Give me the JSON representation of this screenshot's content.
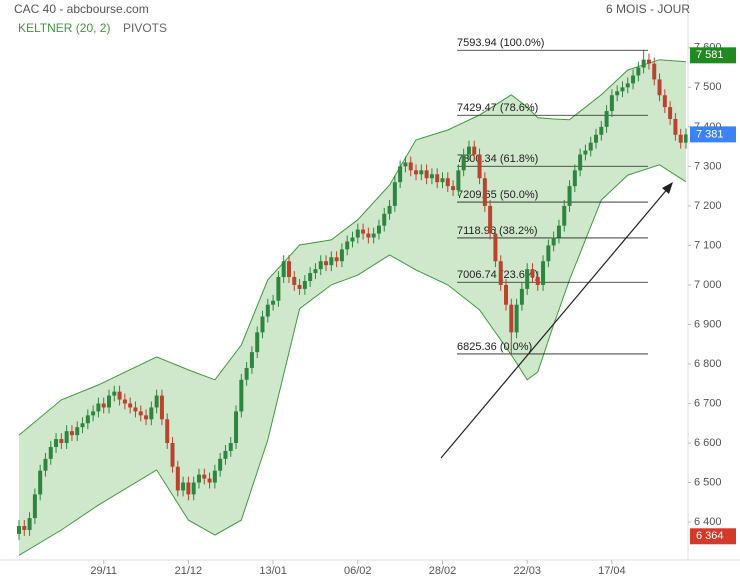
{
  "chart_data": {
    "type": "candlestick",
    "title": "CAC 40 - abcbourse.com",
    "period": "6 MOIS - JOUR",
    "inactive_indicator": "PIVOTS",
    "categories": [
      null,
      null,
      null,
      null,
      null,
      null,
      null,
      null,
      null,
      null,
      null,
      null,
      null,
      null,
      null,
      null,
      "29/11",
      null,
      null,
      null,
      null,
      null,
      null,
      null,
      null,
      null,
      null,
      null,
      null,
      null,
      null,
      null,
      "21/12",
      null,
      null,
      null,
      null,
      null,
      null,
      null,
      null,
      null,
      null,
      null,
      null,
      null,
      null,
      null,
      "13/01",
      null,
      null,
      null,
      null,
      null,
      null,
      null,
      null,
      null,
      null,
      null,
      null,
      null,
      null,
      null,
      "06/02",
      null,
      null,
      null,
      null,
      null,
      null,
      null,
      null,
      null,
      null,
      null,
      null,
      null,
      null,
      null,
      "28/02",
      null,
      null,
      null,
      null,
      null,
      null,
      null,
      null,
      null,
      null,
      null,
      null,
      null,
      null,
      null,
      "22/03",
      null,
      null,
      null,
      null,
      null,
      null,
      null,
      null,
      null,
      null,
      null,
      null,
      null,
      null,
      null,
      "17/04",
      null,
      null,
      null,
      null,
      null,
      null,
      null,
      null,
      null,
      null,
      null,
      null,
      null,
      null
    ],
    "open": [
      6370,
      6390,
      6380,
      6410,
      6470,
      6530,
      6560,
      6590,
      6610,
      6600,
      6630,
      6620,
      6640,
      6650,
      6670,
      6680,
      6700,
      6690,
      6720,
      6730,
      6710,
      6700,
      6690,
      6680,
      6670,
      6660,
      6690,
      6720,
      6660,
      6600,
      6540,
      6480,
      6500,
      6470,
      6500,
      6520,
      6510,
      6500,
      6530,
      6560,
      6580,
      6600,
      6680,
      6760,
      6790,
      6830,
      6880,
      6920,
      6950,
      6960,
      7020,
      7060,
      7020,
      7000,
      6990,
      7010,
      7030,
      7040,
      7060,
      7050,
      7070,
      7060,
      7090,
      7110,
      7120,
      7140,
      7130,
      7120,
      7130,
      7150,
      7180,
      7200,
      7260,
      7300,
      7310,
      7290,
      7280,
      7290,
      7270,
      7280,
      7260,
      7270,
      7250,
      7240,
      7290,
      7330,
      7350,
      7330,
      7270,
      7200,
      7130,
      7060,
      7000,
      6950,
      6880,
      6950,
      6990,
      7040,
      7020,
      7000,
      7060,
      7100,
      7120,
      7150,
      7200,
      7250,
      7290,
      7330,
      7340,
      7360,
      7380,
      7400,
      7440,
      7480,
      7490,
      7500,
      7510,
      7530,
      7550,
      7570,
      7560,
      7520,
      7480,
      7450,
      7420,
      7380,
      7360
    ],
    "high": [
      6405,
      6405,
      6425,
      6485,
      6545,
      6575,
      6605,
      6625,
      6625,
      6645,
      6645,
      6655,
      6665,
      6685,
      6695,
      6715,
      6715,
      6735,
      6745,
      6745,
      6725,
      6715,
      6705,
      6695,
      6685,
      6705,
      6735,
      6735,
      6675,
      6615,
      6555,
      6515,
      6515,
      6515,
      6535,
      6535,
      6525,
      6545,
      6575,
      6595,
      6615,
      6695,
      6775,
      6805,
      6845,
      6895,
      6935,
      6965,
      6975,
      7035,
      7075,
      7075,
      7035,
      7015,
      7025,
      7045,
      7055,
      7075,
      7075,
      7085,
      7085,
      7105,
      7125,
      7135,
      7155,
      7155,
      7145,
      7145,
      7165,
      7195,
      7215,
      7275,
      7315,
      7325,
      7325,
      7305,
      7305,
      7305,
      7295,
      7295,
      7285,
      7285,
      7265,
      7305,
      7345,
      7365,
      7365,
      7345,
      7285,
      7215,
      7145,
      7075,
      7015,
      6965,
      6965,
      7005,
      7055,
      7055,
      7035,
      7075,
      7115,
      7135,
      7165,
      7215,
      7265,
      7305,
      7345,
      7355,
      7375,
      7395,
      7415,
      7455,
      7495,
      7505,
      7515,
      7525,
      7545,
      7565,
      7594,
      7585,
      7575,
      7535,
      7495,
      7465,
      7435,
      7395,
      7396
    ],
    "low": [
      6355,
      6365,
      6365,
      6395,
      6455,
      6515,
      6545,
      6575,
      6585,
      6585,
      6605,
      6605,
      6625,
      6635,
      6655,
      6665,
      6675,
      6675,
      6705,
      6695,
      6685,
      6675,
      6665,
      6655,
      6645,
      6645,
      6675,
      6645,
      6585,
      6525,
      6465,
      6465,
      6455,
      6455,
      6485,
      6495,
      6485,
      6485,
      6515,
      6545,
      6565,
      6585,
      6665,
      6745,
      6775,
      6815,
      6865,
      6905,
      6935,
      6945,
      7005,
      7005,
      6985,
      6975,
      6975,
      6995,
      7015,
      7025,
      7035,
      7035,
      7045,
      7045,
      7075,
      7095,
      7105,
      7115,
      7105,
      7105,
      7115,
      7135,
      7165,
      7185,
      7245,
      7285,
      7275,
      7265,
      7265,
      7255,
      7255,
      7245,
      7245,
      7235,
      7225,
      7225,
      7275,
      7315,
      7315,
      7255,
      7185,
      7115,
      7045,
      6985,
      6935,
      6825,
      6865,
      6935,
      6975,
      7005,
      6985,
      6985,
      7045,
      7085,
      7105,
      7135,
      7185,
      7235,
      7275,
      7315,
      7325,
      7345,
      7365,
      7385,
      7425,
      7465,
      7475,
      7485,
      7495,
      7515,
      7535,
      7545,
      7505,
      7465,
      7435,
      7405,
      7365,
      7345,
      7345
    ],
    "close": [
      6390,
      6380,
      6410,
      6470,
      6530,
      6560,
      6590,
      6610,
      6600,
      6630,
      6620,
      6640,
      6650,
      6670,
      6680,
      6700,
      6690,
      6720,
      6730,
      6710,
      6700,
      6690,
      6680,
      6670,
      6660,
      6690,
      6720,
      6660,
      6600,
      6540,
      6480,
      6500,
      6470,
      6500,
      6520,
      6510,
      6500,
      6530,
      6560,
      6580,
      6600,
      6680,
      6760,
      6790,
      6830,
      6880,
      6920,
      6950,
      6960,
      7020,
      7060,
      7020,
      7000,
      6990,
      7010,
      7030,
      7040,
      7060,
      7050,
      7070,
      7060,
      7090,
      7110,
      7120,
      7140,
      7130,
      7120,
      7130,
      7150,
      7180,
      7200,
      7260,
      7300,
      7310,
      7290,
      7280,
      7290,
      7270,
      7280,
      7260,
      7270,
      7250,
      7240,
      7290,
      7330,
      7350,
      7330,
      7270,
      7200,
      7130,
      7060,
      7000,
      6950,
      6880,
      6950,
      6990,
      7040,
      7020,
      7000,
      7060,
      7100,
      7120,
      7150,
      7200,
      7250,
      7290,
      7330,
      7340,
      7360,
      7380,
      7400,
      7440,
      7480,
      7490,
      7500,
      7510,
      7530,
      7550,
      7570,
      7560,
      7520,
      7480,
      7450,
      7420,
      7380,
      7360,
      7381
    ],
    "up_color": "#2e8540",
    "down_color": "#b8432f",
    "channel": {
      "name": "KELTNER (20, 2)",
      "color": "#3f9a3f",
      "fill": "#cfe8cb",
      "x": [
        0,
        8,
        15,
        26,
        32,
        37,
        42,
        47,
        53,
        59,
        64,
        70,
        75,
        81,
        87,
        93,
        96,
        98,
        101,
        104,
        110,
        115,
        121,
        126
      ],
      "upper": [
        6620,
        6709,
        6747,
        6818,
        6785,
        6760,
        6848,
        7013,
        7101,
        7114,
        7165,
        7253,
        7367,
        7392,
        7430,
        7481,
        7450,
        7423,
        7420,
        7418,
        7481,
        7544,
        7570,
        7565
      ],
      "lower": [
        6316,
        6380,
        6443,
        6532,
        6405,
        6367,
        6405,
        6608,
        6940,
        7000,
        7025,
        7076,
        7038,
        7000,
        6937,
        6823,
        6760,
        6780,
        6900,
        7013,
        7215,
        7278,
        7304,
        7261
      ]
    },
    "fibonacci": {
      "color": "#222222",
      "levels": [
        {
          "value": 7593.94,
          "label": "7593.94  (100.0%)"
        },
        {
          "value": 7429.47,
          "label": "7429.47  (78.6%)"
        },
        {
          "value": 7300.34,
          "label": "7300.34  (61.8%)"
        },
        {
          "value": 7209.65,
          "label": "7209.65  (50.0%)"
        },
        {
          "value": 7118.96,
          "label": "7118.96  (38.2%)"
        },
        {
          "value": 7006.74,
          "label": "7006.74  (23.6%)"
        },
        {
          "value": 6825.36,
          "label": "6825.36  (0.0%)"
        }
      ]
    },
    "price_labels": [
      {
        "value": 7581,
        "label": "7 581",
        "color": "#1f8a1f"
      },
      {
        "value": 7381,
        "label": "7 381",
        "color": "#3b82f6"
      },
      {
        "value": 6364,
        "label": "6 364",
        "color": "#d43a2a"
      }
    ],
    "ylim": [
      6304,
      7721
    ],
    "yticks": [
      {
        "value": 6400,
        "label": "6 400"
      },
      {
        "value": 6500,
        "label": "6 500"
      },
      {
        "value": 6600,
        "label": "6 600"
      },
      {
        "value": 6700,
        "label": "6 700"
      },
      {
        "value": 6800,
        "label": "6 800"
      },
      {
        "value": 6900,
        "label": "6 900"
      },
      {
        "value": 7000,
        "label": "7 000"
      },
      {
        "value": 7100,
        "label": "7 100"
      },
      {
        "value": 7200,
        "label": "7 200"
      },
      {
        "value": 7300,
        "label": "7 300"
      },
      {
        "value": 7400,
        "label": "7 400"
      },
      {
        "value": 7500,
        "label": "7 500"
      },
      {
        "value": 7600,
        "label": "7 600"
      }
    ],
    "grid": false
  }
}
